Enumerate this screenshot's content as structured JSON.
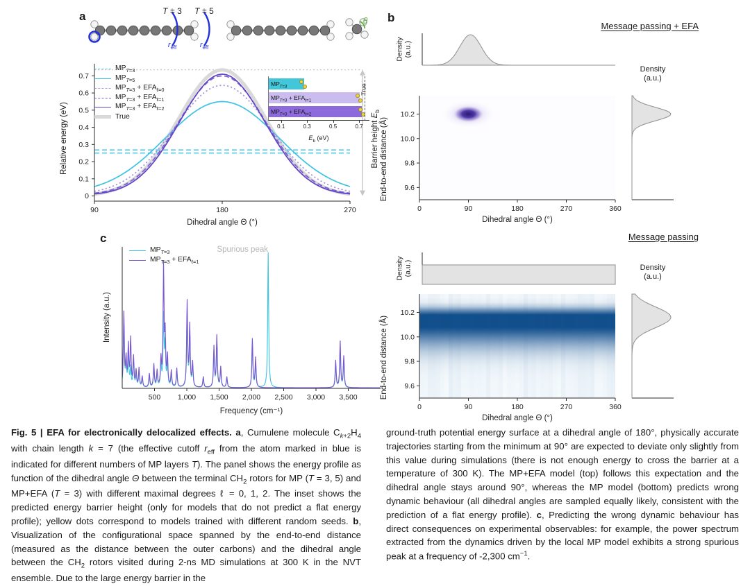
{
  "panels": {
    "a": "a",
    "b": "b",
    "c": "c"
  },
  "molecule": {
    "t3": "<i>T</i> = 3",
    "t5": "<i>T</i> = 5",
    "reff": "<i>r</i><sub>eff</sub>",
    "theta": "θ",
    "reff_color": "#2330d8",
    "theta_color": "#5fae3f"
  },
  "panel_a": {
    "barrier_label_rich": "Barrier height <i>E</i><sub>b</sub>",
    "legend": [
      {
        "label": "MP<sub><i>T</i>=3</sub>",
        "style": "dashed",
        "color": "#58c9e6",
        "lw": 1.6
      },
      {
        "label": "MP<sub><i>T</i>=5</sub>",
        "style": "solid",
        "color": "#3fc1e3",
        "lw": 1.8
      },
      {
        "label": "MP<sub><i>T</i>=3</sub> + EFA<sub>ℓ=0</sub>",
        "style": "dotted",
        "color": "#a292e2",
        "lw": 1.8
      },
      {
        "label": "MP<sub><i>T</i>=3</sub> + EFA<sub>ℓ=1</sub>",
        "style": "dashed",
        "color": "#7d5fd3",
        "lw": 1.6
      },
      {
        "label": "MP<sub><i>T</i>=3</sub> + EFA<sub>ℓ=2</sub>",
        "style": "solid",
        "color": "#6243c7",
        "lw": 1.8
      },
      {
        "label": "True",
        "style": "solid",
        "color": "#d9d9d9",
        "lw": 5
      }
    ]
  },
  "panel_b": {
    "density_two_line": "Density<br>(a.u.)"
  },
  "panel_c": {
    "spurious": "Spurious peak",
    "legend": [
      {
        "label": "MP<sub><i>T</i>=3</sub>",
        "style": "solid",
        "color": "#3fc6e2",
        "lw": 1.8
      },
      {
        "label": "MP<sub><i>T</i>=3</sub> + EFA<sub>ℓ=1</sub>",
        "style": "solid",
        "color": "#7a57cf",
        "lw": 1.8
      }
    ]
  },
  "caption": {
    "left": "<b>Fig. 5 | EFA for electronically delocalized effects. a</b>, Cumulene molecule C<sub><i>k</i>+2</sub>H<sub>4</sub> with chain length <i>k</i> = 7 (the effective cutoff <i>r</i><sub>eff</sub> from the atom marked in blue is indicated for different numbers of MP layers <i>T</i>). The panel shows the energy profile as function of the dihedral angle <i>Θ</i> between the terminal CH<sub>2</sub> rotors for MP (<i>T</i> = 3, 5) and MP+EFA (<i>T</i> = 3) with different maximal degrees ℓ = 0, 1, 2. The inset shows the predicted energy barrier height (only for models that do not predict a flat energy profile); yellow dots correspond to models trained with different random seeds. <b>b</b>, Visualization of the configurational space spanned by the end-to-end distance (measured as the distance between the outer carbons) and the dihedral angle between the CH<sub>2</sub> rotors visited during 2-ns MD simulations at 300 K in the NVT ensemble. Due to the large energy barrier in the",
    "right": "ground-truth potential energy surface at a dihedral angle of 180°, physically accurate trajectories starting from the minimum at 90° are expected to deviate only slightly from this value during simulations (there is not enough energy to cross the barrier at a temperature of 300 K). The MP+EFA model (top) follows this expectation and the dihedral angle stays around 90°, whereas the MP model (bottom) predicts wrong dynamic behaviour (all dihedral angles are sampled equally likely, consistent with the prediction of a flat energy profile). <b>c</b>, Predicting the wrong dynamic behaviour has direct consequences on experimental observables: for example, the power spectrum extracted from the dynamics driven by the local MP model exhibits a strong spurious peak at a frequency of -2,300 cm<sup>−1</sup>."
  },
  "chart_data": [
    {
      "id": "energy_profile",
      "type": "line",
      "xlabel": "Dihedral angle Θ (°)",
      "ylabel": "Relative energy (eV)",
      "xlim": [
        90,
        270
      ],
      "ylim": [
        -0.03,
        0.77
      ],
      "xticks": [
        90,
        180,
        270
      ],
      "xtick_labels": [
        "90",
        "180",
        "270"
      ],
      "yticks": [
        0,
        0.1,
        0.2,
        0.3,
        0.4,
        0.5,
        0.6,
        0.7
      ],
      "ytick_labels": [
        "0",
        "0.1",
        "0.2",
        "0.3",
        "0.4",
        "0.5",
        "0.6",
        "0.7"
      ],
      "series": [
        {
          "name": "MP_T=3",
          "color": "#58c9e6",
          "style": "dashed",
          "shape": "flat",
          "values": [
            0.25,
            0.268
          ]
        },
        {
          "name": "MP_T=5",
          "color": "#3fc1e3",
          "style": "solid",
          "shape": "bell",
          "peak": 0.55,
          "sigma": 40,
          "base": 0.012
        },
        {
          "name": "MP_T=3+EFA_l=0",
          "color": "#a292e2",
          "style": "dotted",
          "shape": "bell",
          "peak": 0.645,
          "sigma": 34,
          "base": 0.008
        },
        {
          "name": "MP_T=3+EFA_l=1",
          "color": "#7d5fd3",
          "style": "dashed",
          "shape": "bell",
          "peak": 0.7,
          "sigma": 31,
          "base": 0.006
        },
        {
          "name": "MP_T=3+EFA_l=2",
          "color": "#6243c7",
          "style": "solid",
          "shape": "bell",
          "peak": 0.71,
          "sigma": 30,
          "base": 0.004
        },
        {
          "name": "True",
          "color": "#d9d9d9",
          "style": "solid",
          "width": 5,
          "shape": "bell",
          "peak": 0.735,
          "sigma": 31,
          "base": 0
        }
      ],
      "annotations": {
        "barrier_line_y": 0.735
      }
    },
    {
      "id": "barrier_inset",
      "type": "bar",
      "orientation": "horizontal",
      "xlabel_rich": "<i>E</i><sub>b</sub> (eV)",
      "xlim": [
        0,
        0.78
      ],
      "xticks": [
        0.1,
        0.3,
        0.5,
        0.7
      ],
      "xtick_labels": [
        "0.1",
        "0.3",
        "0.5",
        "0.7"
      ],
      "bars": [
        {
          "label_rich": "MP<sub><i>T</i>=3</sub>",
          "value": 0.27,
          "color": "#42c6da",
          "seeds": [
            0.25,
            0.28
          ]
        },
        {
          "label_rich": "MP<sub><i>T</i>=3</sub> + EFA<sub>ℓ=1</sub>",
          "value": 0.7,
          "color": "#cbbcf0",
          "seeds": [
            0.685,
            0.705
          ]
        },
        {
          "label_rich": "MP<sub><i>T</i>=3</sub> + EFA<sub>ℓ=2</sub>",
          "value": 0.715,
          "color": "#8d6bdc",
          "seeds": [
            0.705,
            0.725
          ]
        }
      ],
      "true_value": 0.735,
      "true_label": "True",
      "seed_color": "#f2d43c"
    },
    {
      "id": "config_space_efa",
      "type": "heatmap",
      "title": "Message passing + EFA",
      "xlabel": "Dihedral angle Θ (°)",
      "ylabel": "End-to-end distance (Å)",
      "xlim": [
        0,
        360
      ],
      "ylim": [
        9.5,
        10.35
      ],
      "xticks": [
        0,
        90,
        180,
        270,
        360
      ],
      "xtick_labels": [
        "0",
        "90",
        "180",
        "270",
        "360"
      ],
      "yticks": [
        9.6,
        9.8,
        10.0,
        10.2
      ],
      "ytick_labels": [
        "9.6",
        "9.8",
        "10.0",
        "10.2"
      ],
      "distribution": {
        "kind": "gaussian_blob",
        "x_center": 90,
        "x_sigma": 16,
        "y_center": 10.2,
        "y_sigma": 0.045,
        "color": "#2a1a7e"
      },
      "marginal_x": {
        "kind": "gaussian",
        "center": 90,
        "sigma": 20
      },
      "marginal_y": {
        "kind": "gaussian",
        "center": 10.2,
        "sigma": 0.055
      },
      "density_label": "Density (a.u.)"
    },
    {
      "id": "config_space_mp",
      "type": "heatmap",
      "title": "Message passing",
      "xlabel": "Dihedral angle Θ (°)",
      "ylabel": "End-to-end distance (Å)",
      "xlim": [
        0,
        360
      ],
      "ylim": [
        9.5,
        10.35
      ],
      "xticks": [
        0,
        90,
        180,
        270,
        360
      ],
      "xtick_labels": [
        "0",
        "90",
        "180",
        "270",
        "360"
      ],
      "yticks": [
        9.6,
        9.8,
        10.0,
        10.2
      ],
      "ytick_labels": [
        "9.6",
        "9.8",
        "10.0",
        "10.2"
      ],
      "distribution": {
        "kind": "horizontal_band",
        "y_center": 10.16,
        "sigma_up": 0.05,
        "sigma_down": 0.16,
        "color": "#124f8c"
      },
      "marginal_x": {
        "kind": "uniform",
        "level": 0.52
      },
      "marginal_y": {
        "kind": "gaussian",
        "center": 10.16,
        "sigma": 0.085
      },
      "density_label": "Density (a.u.)"
    },
    {
      "id": "power_spectrum",
      "type": "line",
      "xlabel": "Frequency (cm⁻¹)",
      "ylabel": "Intensity (a.u.)",
      "xlim": [
        0,
        4000
      ],
      "xticks": [
        500,
        1000,
        1500,
        2000,
        2500,
        3000,
        3500
      ],
      "xtick_labels": [
        "500",
        "1,000",
        "1,500",
        "2,000",
        "2,500",
        "3,000",
        "3,500"
      ],
      "peak_width_cm": 9,
      "series": [
        {
          "name": "MP_T=3",
          "color": "#3fc6e2",
          "peaks": [
            [
              25,
              0.5
            ],
            [
              60,
              0.18
            ],
            [
              95,
              0.25
            ],
            [
              130,
              0.14
            ],
            [
              175,
              0.2
            ],
            [
              215,
              0.1
            ],
            [
              260,
              0.12
            ],
            [
              310,
              0.07
            ],
            [
              420,
              0.08
            ],
            [
              490,
              0.15
            ],
            [
              540,
              0.1
            ],
            [
              600,
              0.18
            ],
            [
              640,
              0.52
            ],
            [
              665,
              0.3
            ],
            [
              700,
              0.18
            ],
            [
              760,
              0.1
            ],
            [
              845,
              0.12
            ],
            [
              1005,
              0.55
            ],
            [
              1045,
              0.4
            ],
            [
              1090,
              0.16
            ],
            [
              1255,
              0.07
            ],
            [
              1420,
              0.27
            ],
            [
              1465,
              0.35
            ],
            [
              1525,
              0.13
            ],
            [
              1620,
              0.07
            ],
            [
              2015,
              0.32
            ],
            [
              2065,
              0.18
            ],
            [
              2260,
              1.0
            ],
            [
              3305,
              0.17
            ],
            [
              3375,
              0.3
            ],
            [
              3430,
              0.2
            ]
          ]
        },
        {
          "name": "MP_T=3+EFA_l=1",
          "color": "#7a57cf",
          "peaks": [
            [
              25,
              0.55
            ],
            [
              60,
              0.2
            ],
            [
              95,
              0.3
            ],
            [
              130,
              0.35
            ],
            [
              175,
              0.22
            ],
            [
              215,
              0.12
            ],
            [
              260,
              0.14
            ],
            [
              310,
              0.08
            ],
            [
              420,
              0.1
            ],
            [
              490,
              0.17
            ],
            [
              540,
              0.12
            ],
            [
              600,
              0.2
            ],
            [
              640,
              0.88
            ],
            [
              665,
              0.36
            ],
            [
              700,
              0.22
            ],
            [
              760,
              0.12
            ],
            [
              845,
              0.14
            ],
            [
              1005,
              0.63
            ],
            [
              1045,
              0.45
            ],
            [
              1090,
              0.18
            ],
            [
              1255,
              0.08
            ],
            [
              1420,
              0.3
            ],
            [
              1465,
              0.38
            ],
            [
              1525,
              0.15
            ],
            [
              1620,
              0.08
            ],
            [
              2015,
              0.36
            ],
            [
              2065,
              0.22
            ],
            [
              3305,
              0.2
            ],
            [
              3375,
              0.34
            ],
            [
              3430,
              0.23
            ]
          ]
        }
      ],
      "annotation": {
        "text": "Spurious peak",
        "x": 2260,
        "color": "#b5b5b5"
      }
    }
  ]
}
